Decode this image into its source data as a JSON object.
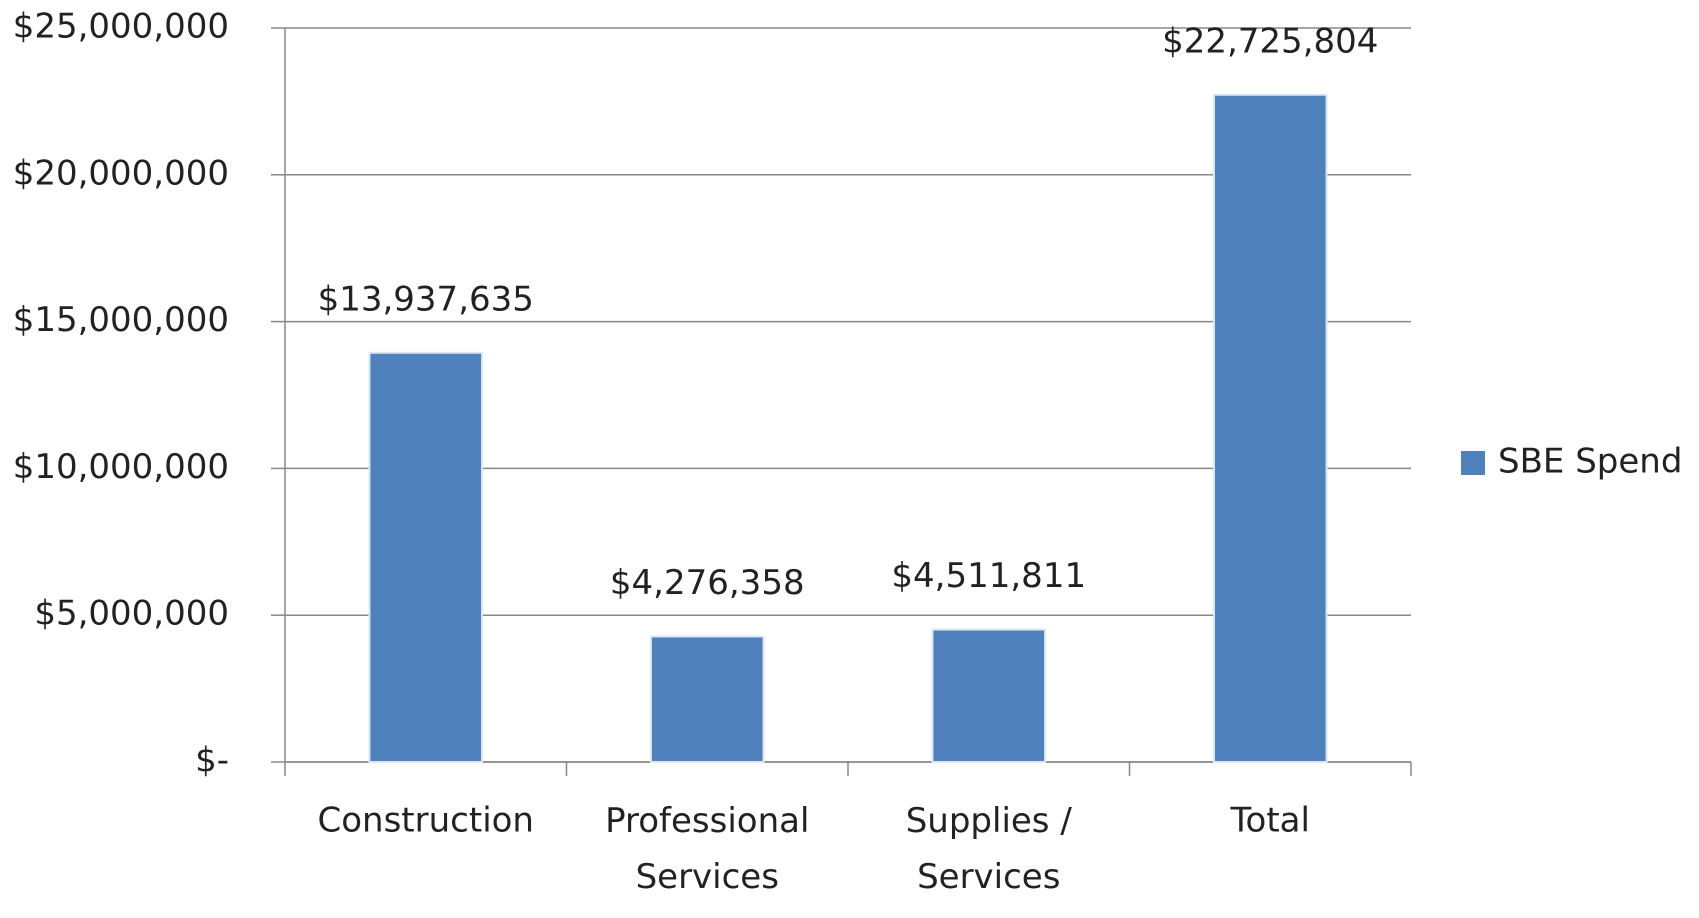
{
  "chart_data": {
    "type": "bar",
    "categories": [
      "Construction",
      "Professional Services",
      "Supplies / Services",
      "Total"
    ],
    "series": [
      {
        "name": "SBE Spend",
        "color": "#4f81bd",
        "values": [
          13937635,
          4276358,
          4511811,
          22725804
        ],
        "value_labels": [
          "$13,937,635",
          "$4,276,358",
          "$4,511,811",
          "$22,725,804"
        ]
      }
    ],
    "ylim": [
      0,
      25000000
    ],
    "yticks": [
      {
        "value": 0,
        "label": "$-"
      },
      {
        "value": 5000000,
        "label": "$5,000,000"
      },
      {
        "value": 10000000,
        "label": "$10,000,000"
      },
      {
        "value": 15000000,
        "label": "$15,000,000"
      },
      {
        "value": 20000000,
        "label": "$20,000,000"
      },
      {
        "value": 25000000,
        "label": "$25,000,000"
      }
    ],
    "grid": true,
    "legend": "right"
  }
}
